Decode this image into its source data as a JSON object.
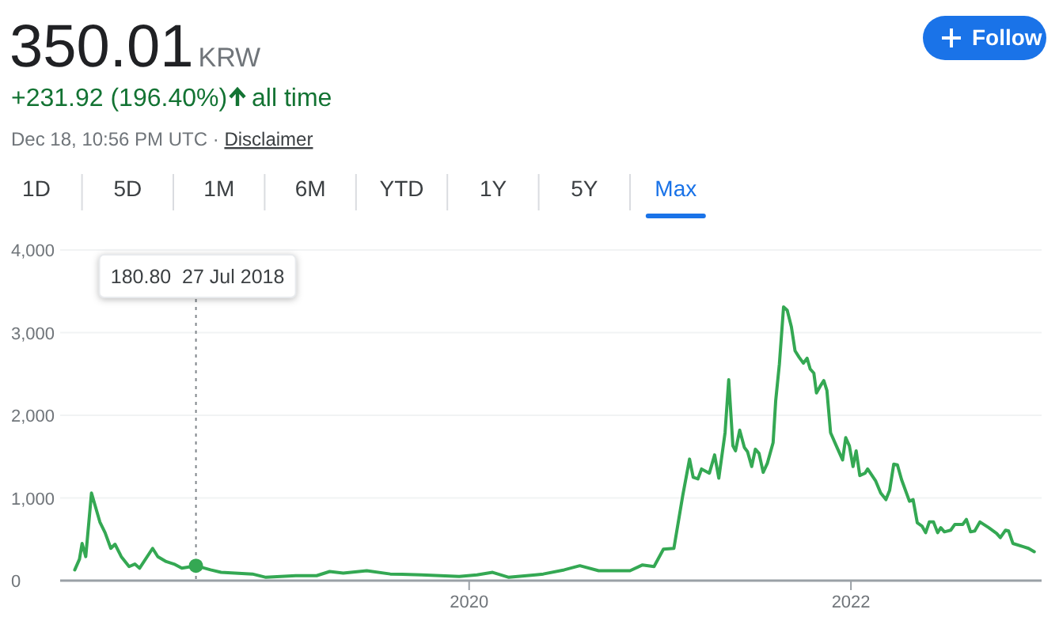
{
  "chart_data": {
    "type": "line",
    "title": "350.01",
    "annotations": [
      "KRW",
      "+231.92 (196.40%)",
      "all time",
      "Dec 18, 10:56 PM UTC · ",
      "Disclaimer",
      "Follow",
      "1D",
      "5D",
      "1M",
      "6M",
      "YTD",
      "1Y",
      "5Y",
      "Max",
      "180.80  27 Jul 2018"
    ],
    "x": [
      "2017-12-07",
      "2017-12-16",
      "2017-12-21",
      "2017-12-28",
      "2018-01-08",
      "2018-01-24",
      "2018-02-03",
      "2018-02-14",
      "2018-02-22",
      "2018-03-06",
      "2018-03-21",
      "2018-04-01",
      "2018-04-10",
      "2018-05-05",
      "2018-05-15",
      "2018-05-31",
      "2018-06-15",
      "2018-06-30",
      "2018-07-27",
      "2018-08-24",
      "2018-09-13",
      "2018-11-12",
      "2018-12-08",
      "2019-02-03",
      "2019-03-15",
      "2019-04-09",
      "2019-05-05",
      "2019-06-19",
      "2019-08-03",
      "2019-10-02",
      "2019-12-13",
      "2020-01-16",
      "2020-02-15",
      "2020-03-17",
      "2020-05-07",
      "2020-05-22",
      "2020-07-01",
      "2020-07-31",
      "2020-09-05",
      "2020-11-04",
      "2020-11-28",
      "2020-12-20",
      "2021-01-07",
      "2021-01-27",
      "2021-02-13",
      "2021-02-26",
      "2021-03-05",
      "2021-03-14",
      "2021-03-21",
      "2021-04-05",
      "2021-04-15",
      "2021-04-23",
      "2021-05-05",
      "2021-05-12",
      "2021-05-20",
      "2021-05-25",
      "2021-06-02",
      "2021-06-11",
      "2021-06-17",
      "2021-06-25",
      "2021-07-02",
      "2021-07-09",
      "2021-07-17",
      "2021-07-25",
      "2021-08-05",
      "2021-08-10",
      "2021-08-17",
      "2021-08-25",
      "2021-09-01",
      "2021-09-09",
      "2021-09-16",
      "2021-09-24",
      "2021-10-02",
      "2021-10-09",
      "2021-10-15",
      "2021-10-22",
      "2021-10-27",
      "2021-11-03",
      "2021-11-10",
      "2021-11-16",
      "2021-11-23",
      "2021-12-04",
      "2021-12-16",
      "2021-12-22",
      "2021-12-29",
      "2022-01-05",
      "2022-01-11",
      "2022-01-18",
      "2022-01-28",
      "2022-02-02",
      "2022-02-17",
      "2022-02-27",
      "2022-03-09",
      "2022-03-16",
      "2022-03-24",
      "2022-03-31",
      "2022-04-08",
      "2022-04-23",
      "2022-04-30",
      "2022-05-08",
      "2022-05-17",
      "2022-05-24",
      "2022-05-31",
      "2022-06-08",
      "2022-06-16",
      "2022-06-22",
      "2022-06-29",
      "2022-07-11",
      "2022-07-19",
      "2022-08-03",
      "2022-08-10",
      "2022-08-18",
      "2022-08-26",
      "2022-09-05",
      "2022-09-22",
      "2022-10-07",
      "2022-10-14",
      "2022-10-24",
      "2022-10-30",
      "2022-11-07",
      "2022-11-27",
      "2022-12-07",
      "2022-12-18"
    ],
    "series": [
      {
        "color": "#34a853",
        "values": [
          130,
          260,
          450,
          290,
          1060,
          710,
          580,
          390,
          440,
          290,
          170,
          200,
          150,
          390,
          290,
          230,
          200,
          150,
          180,
          130,
          100,
          80,
          40,
          60,
          60,
          110,
          90,
          120,
          80,
          70,
          50,
          70,
          100,
          40,
          70,
          80,
          130,
          180,
          120,
          120,
          190,
          170,
          380,
          390,
          1030,
          1470,
          1250,
          1230,
          1350,
          1300,
          1520,
          1240,
          1790,
          2430,
          1630,
          1570,
          1820,
          1610,
          1560,
          1380,
          1590,
          1540,
          1310,
          1420,
          1670,
          2180,
          2620,
          3310,
          3270,
          3070,
          2780,
          2700,
          2630,
          2690,
          2560,
          2510,
          2270,
          2350,
          2420,
          2300,
          1790,
          1630,
          1460,
          1730,
          1630,
          1380,
          1570,
          1270,
          1300,
          1350,
          1210,
          1060,
          980,
          1090,
          1410,
          1400,
          1220,
          960,
          980,
          700,
          660,
          580,
          710,
          710,
          580,
          640,
          590,
          610,
          680,
          680,
          740,
          590,
          600,
          710,
          640,
          570,
          520,
          610,
          600,
          450,
          410,
          390,
          350
        ]
      }
    ],
    "xlim": [
      "2017-11-09",
      "2023-01-01"
    ],
    "ylim": [
      0,
      4000
    ],
    "xticks": [
      {
        "value": "2020-01-01",
        "label": "2020"
      },
      {
        "value": "2022-01-01",
        "label": "2022"
      }
    ],
    "yticks": [
      {
        "value": 0,
        "label": "0"
      },
      {
        "value": 1000,
        "label": "1,000"
      },
      {
        "value": 2000,
        "label": "2,000"
      },
      {
        "value": 3000,
        "label": "3,000"
      },
      {
        "value": 4000,
        "label": "4,000"
      }
    ],
    "grid": "y",
    "marker": "none",
    "line_style": "solid",
    "ref_lines": [
      {
        "axis": "x",
        "value": "2018-07-27",
        "line_style": "dotted",
        "color": "#80868b"
      }
    ]
  }
}
